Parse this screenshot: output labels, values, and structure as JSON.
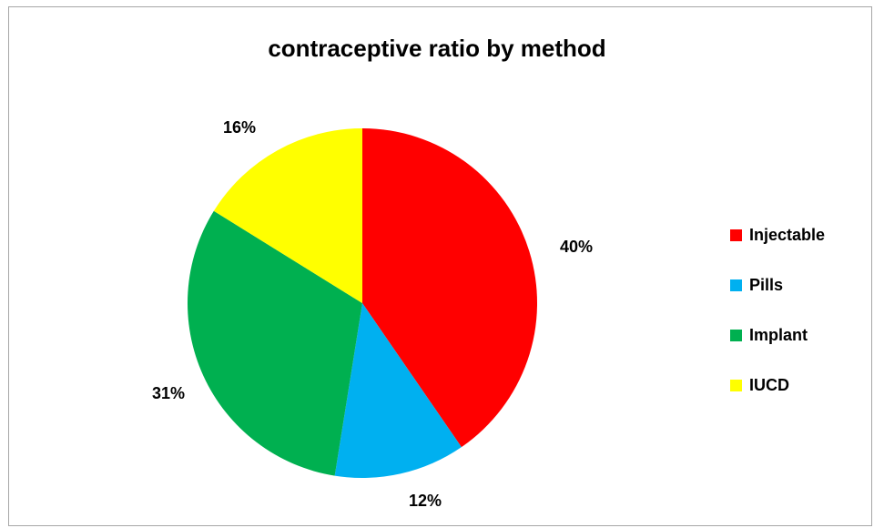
{
  "chart_data": {
    "type": "pie",
    "title": "contraceptive ratio by method",
    "categories": [
      "Injectable",
      "Pills",
      "Implant",
      "IUCD"
    ],
    "values": [
      40,
      12,
      31,
      16
    ],
    "labels": [
      "40%",
      "12%",
      "31%",
      "16%"
    ],
    "colors": [
      "#ff0000",
      "#00b0f0",
      "#00b050",
      "#ffff00"
    ],
    "legend": "right"
  }
}
